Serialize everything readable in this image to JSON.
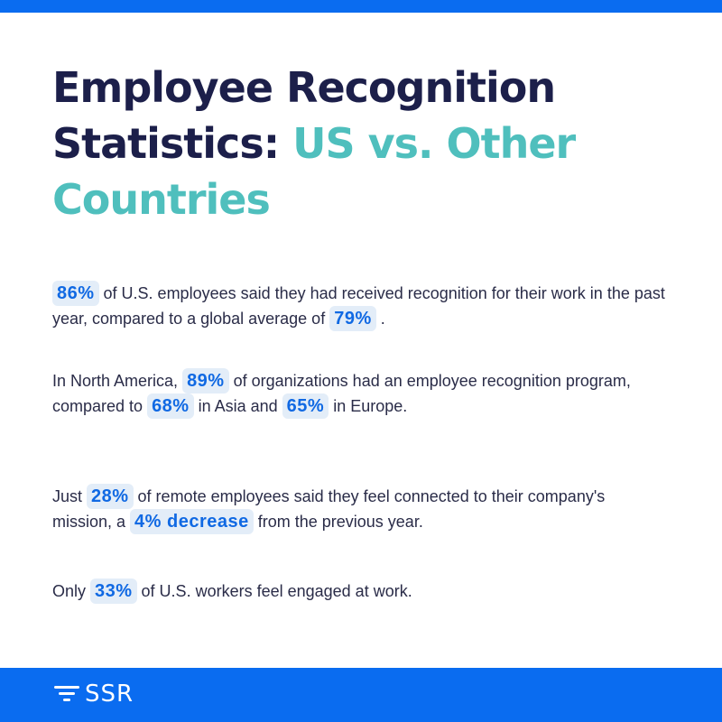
{
  "title": {
    "line_dark": "Employee Recognition Statistics:",
    "line_accent": "US vs. Other Countries"
  },
  "stats": [
    {
      "highlight1": "86%",
      "text1": " of U.S. employees said they had received recognition for their work in the past year, compared to a global average of ",
      "highlight2": "79%",
      "text2": " ."
    },
    {
      "text0": "In North America, ",
      "highlight1": "89%",
      "text1": " of organizations had an employee recognition program, compared to ",
      "highlight2": "68%",
      "text2": " in Asia and ",
      "highlight3": "65%",
      "text3": " in Europe."
    },
    {
      "text0": "Just ",
      "highlight1": "28%",
      "text1": " of remote employees said they feel connected to their company's mission, a ",
      "highlight2": "4% decrease",
      "text2": " from the previous year."
    },
    {
      "text0": "Only ",
      "highlight1": "33%",
      "text1": " of U.S. workers feel engaged at work."
    }
  ],
  "footer": {
    "logo_text": "SSR",
    "logo_icon": "funnel-lines-icon"
  },
  "colors": {
    "brand_blue": "#0a6cf0",
    "title_dark": "#1c1f4a",
    "title_accent": "#4fbfbd",
    "highlight_bg": "#e3edf8",
    "highlight_text": "#1069e3"
  }
}
